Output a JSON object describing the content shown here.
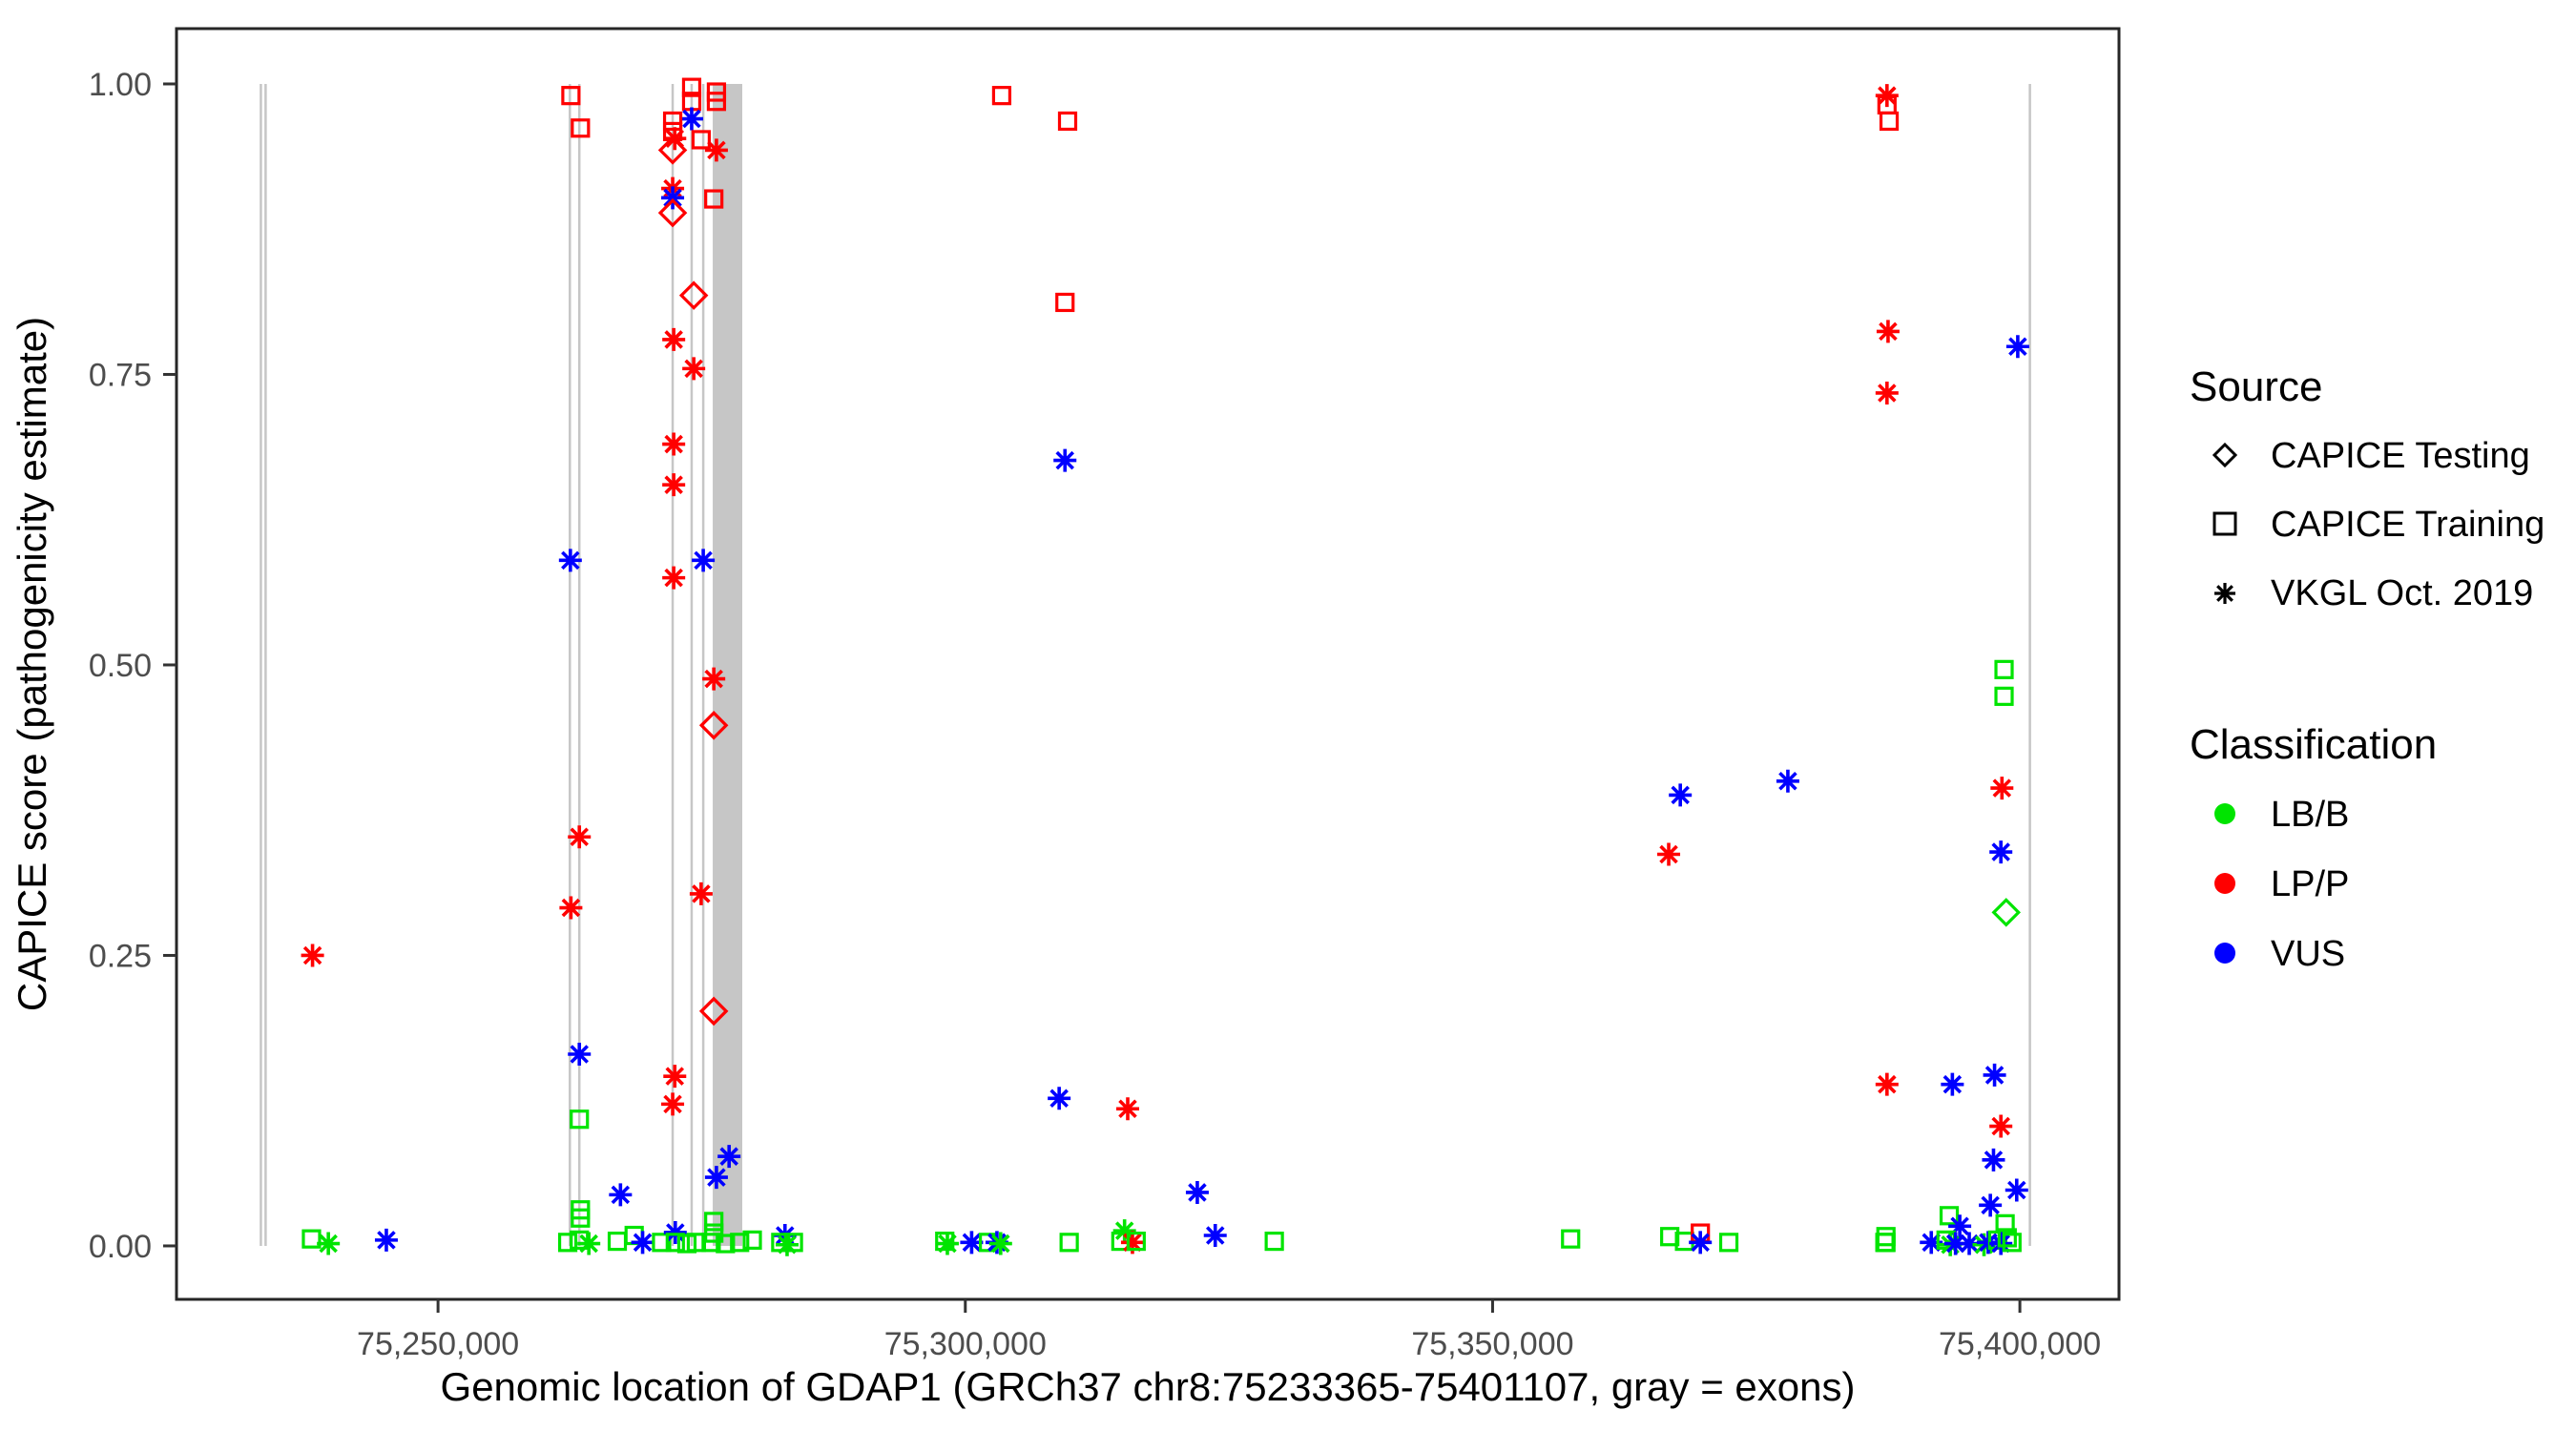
{
  "axes": {
    "x": {
      "label": "Genomic location of GDAP1 (GRCh37 chr8:75233365-75401107, gray = exons)",
      "range": [
        75225200,
        75409400
      ],
      "ticks": [
        {
          "value": 75250000,
          "label": "75,250,000"
        },
        {
          "value": 75300000,
          "label": "75,300,000"
        },
        {
          "value": 75350000,
          "label": "75,350,000"
        },
        {
          "value": 75400000,
          "label": "75,400,000"
        }
      ]
    },
    "y": {
      "label": "CAPICE score (pathogenicity estimate)",
      "range": [
        -0.046,
        1.0476
      ],
      "ticks": [
        {
          "value": 0.0,
          "label": "0.00"
        },
        {
          "value": 0.25,
          "label": "0.25"
        },
        {
          "value": 0.5,
          "label": "0.50"
        },
        {
          "value": 0.75,
          "label": "0.75"
        },
        {
          "value": 1.0,
          "label": "1.00"
        }
      ]
    }
  },
  "legend": {
    "source": {
      "title": "Source",
      "items": [
        {
          "shape": "diamond",
          "label": "CAPICE Testing"
        },
        {
          "shape": "square",
          "label": "CAPICE Training"
        },
        {
          "shape": "asterisk",
          "label": "VKGL Oct. 2019"
        }
      ]
    },
    "classification": {
      "title": "Classification",
      "items": [
        {
          "color": "#00E400",
          "label": "LB/B"
        },
        {
          "color": "#FF0000",
          "label": "LP/P"
        },
        {
          "color": "#0000FF",
          "label": "VUS"
        }
      ]
    }
  },
  "exons": {
    "color": "#C6C6C6",
    "y_span": [
      0,
      1
    ],
    "line_positions": [
      75233200,
      75233650,
      75262500,
      75263400,
      75272250,
      75274050,
      75275150,
      75400950
    ],
    "band": {
      "start": 75276050,
      "end": 75278850
    }
  },
  "chart_data": {
    "type": "scatter",
    "title": "",
    "xlabel": "Genomic location of GDAP1 (GRCh37 chr8:75233365-75401107, gray = exons)",
    "ylabel": "CAPICE score (pathogenicity estimate)",
    "xlim": [
      75225200,
      75409400
    ],
    "ylim": [
      -0.046,
      1.0476
    ],
    "grid": false,
    "legend_position": "right",
    "marker_map": {
      "testing": "diamond",
      "training": "square",
      "vkgl": "asterisk"
    },
    "source_labels": {
      "testing": "CAPICE Testing",
      "training": "CAPICE Training",
      "vkgl": "VKGL Oct. 2019"
    },
    "color_map": {
      "LB/B": "#00E400",
      "LP/P": "#FF0000",
      "VUS": "#0000FF"
    },
    "points": [
      {
        "x": 75238100,
        "y": 0.25,
        "src": "vkgl",
        "cls": "LP/P"
      },
      {
        "x": 75238000,
        "y": 0.006,
        "src": "training",
        "cls": "LB/B"
      },
      {
        "x": 75239600,
        "y": 0.002,
        "src": "vkgl",
        "cls": "LB/B"
      },
      {
        "x": 75245100,
        "y": 0.005,
        "src": "vkgl",
        "cls": "VUS"
      },
      {
        "x": 75262600,
        "y": 0.99,
        "src": "training",
        "cls": "LP/P"
      },
      {
        "x": 75263500,
        "y": 0.962,
        "src": "training",
        "cls": "LP/P"
      },
      {
        "x": 75262550,
        "y": 0.59,
        "src": "vkgl",
        "cls": "VUS"
      },
      {
        "x": 75263400,
        "y": 0.352,
        "src": "vkgl",
        "cls": "LP/P"
      },
      {
        "x": 75262600,
        "y": 0.291,
        "src": "vkgl",
        "cls": "LP/P"
      },
      {
        "x": 75263400,
        "y": 0.165,
        "src": "vkgl",
        "cls": "VUS"
      },
      {
        "x": 75263400,
        "y": 0.109,
        "src": "training",
        "cls": "LB/B"
      },
      {
        "x": 75263500,
        "y": 0.031,
        "src": "training",
        "cls": "LB/B"
      },
      {
        "x": 75263500,
        "y": 0.024,
        "src": "training",
        "cls": "LB/B"
      },
      {
        "x": 75262300,
        "y": 0.003,
        "src": "training",
        "cls": "LB/B"
      },
      {
        "x": 75263400,
        "y": 0.005,
        "src": "training",
        "cls": "LB/B"
      },
      {
        "x": 75264300,
        "y": 0.002,
        "src": "vkgl",
        "cls": "LB/B"
      },
      {
        "x": 75267300,
        "y": 0.044,
        "src": "vkgl",
        "cls": "VUS"
      },
      {
        "x": 75268600,
        "y": 0.009,
        "src": "training",
        "cls": "LB/B"
      },
      {
        "x": 75269400,
        "y": 0.003,
        "src": "vkgl",
        "cls": "VUS"
      },
      {
        "x": 75267000,
        "y": 0.004,
        "src": "training",
        "cls": "LB/B"
      },
      {
        "x": 75271200,
        "y": 0.003,
        "src": "training",
        "cls": "LB/B"
      },
      {
        "x": 75274050,
        "y": 0.997,
        "src": "training",
        "cls": "LP/P"
      },
      {
        "x": 75274050,
        "y": 0.985,
        "src": "training",
        "cls": "LP/P"
      },
      {
        "x": 75276400,
        "y": 0.993,
        "src": "training",
        "cls": "LP/P"
      },
      {
        "x": 75276400,
        "y": 0.985,
        "src": "training",
        "cls": "LP/P"
      },
      {
        "x": 75274050,
        "y": 0.97,
        "src": "vkgl",
        "cls": "VUS"
      },
      {
        "x": 75272250,
        "y": 0.968,
        "src": "training",
        "cls": "LP/P"
      },
      {
        "x": 75272250,
        "y": 0.959,
        "src": "training",
        "cls": "LP/P"
      },
      {
        "x": 75272450,
        "y": 0.953,
        "src": "vkgl",
        "cls": "LP/P"
      },
      {
        "x": 75272250,
        "y": 0.943,
        "src": "testing",
        "cls": "LP/P"
      },
      {
        "x": 75274950,
        "y": 0.952,
        "src": "training",
        "cls": "LP/P"
      },
      {
        "x": 75276400,
        "y": 0.943,
        "src": "vkgl",
        "cls": "LP/P"
      },
      {
        "x": 75272250,
        "y": 0.91,
        "src": "vkgl",
        "cls": "LP/P"
      },
      {
        "x": 75272250,
        "y": 0.902,
        "src": "vkgl",
        "cls": "VUS"
      },
      {
        "x": 75272250,
        "y": 0.889,
        "src": "testing",
        "cls": "LP/P"
      },
      {
        "x": 75276150,
        "y": 0.901,
        "src": "training",
        "cls": "LP/P"
      },
      {
        "x": 75274250,
        "y": 0.818,
        "src": "testing",
        "cls": "LP/P"
      },
      {
        "x": 75272350,
        "y": 0.78,
        "src": "vkgl",
        "cls": "LP/P"
      },
      {
        "x": 75274250,
        "y": 0.755,
        "src": "vkgl",
        "cls": "LP/P"
      },
      {
        "x": 75272350,
        "y": 0.69,
        "src": "vkgl",
        "cls": "LP/P"
      },
      {
        "x": 75272350,
        "y": 0.655,
        "src": "vkgl",
        "cls": "LP/P"
      },
      {
        "x": 75275150,
        "y": 0.59,
        "src": "vkgl",
        "cls": "VUS"
      },
      {
        "x": 75272350,
        "y": 0.575,
        "src": "vkgl",
        "cls": "LP/P"
      },
      {
        "x": 75276150,
        "y": 0.488,
        "src": "vkgl",
        "cls": "LP/P"
      },
      {
        "x": 75276150,
        "y": 0.448,
        "src": "testing",
        "cls": "LP/P"
      },
      {
        "x": 75274950,
        "y": 0.303,
        "src": "vkgl",
        "cls": "LP/P"
      },
      {
        "x": 75276150,
        "y": 0.202,
        "src": "testing",
        "cls": "LP/P"
      },
      {
        "x": 75272450,
        "y": 0.146,
        "src": "vkgl",
        "cls": "LP/P"
      },
      {
        "x": 75272250,
        "y": 0.122,
        "src": "vkgl",
        "cls": "LP/P"
      },
      {
        "x": 75277600,
        "y": 0.077,
        "src": "vkgl",
        "cls": "VUS"
      },
      {
        "x": 75276400,
        "y": 0.059,
        "src": "vkgl",
        "cls": "VUS"
      },
      {
        "x": 75272500,
        "y": 0.0115,
        "src": "vkgl",
        "cls": "VUS"
      },
      {
        "x": 75272500,
        "y": 0.003,
        "src": "training",
        "cls": "LB/B"
      },
      {
        "x": 75273600,
        "y": 0.002,
        "src": "training",
        "cls": "LB/B"
      },
      {
        "x": 75274500,
        "y": 0.003,
        "src": "training",
        "cls": "LB/B"
      },
      {
        "x": 75276150,
        "y": 0.021,
        "src": "training",
        "cls": "LB/B"
      },
      {
        "x": 75276150,
        "y": 0.011,
        "src": "training",
        "cls": "LB/B"
      },
      {
        "x": 75275900,
        "y": 0.003,
        "src": "training",
        "cls": "LB/B"
      },
      {
        "x": 75277250,
        "y": 0.002,
        "src": "training",
        "cls": "LB/B"
      },
      {
        "x": 75278600,
        "y": 0.003,
        "src": "training",
        "cls": "LB/B"
      },
      {
        "x": 75279800,
        "y": 0.005,
        "src": "training",
        "cls": "LB/B"
      },
      {
        "x": 75282900,
        "y": 0.009,
        "src": "vkgl",
        "cls": "VUS"
      },
      {
        "x": 75282500,
        "y": 0.003,
        "src": "training",
        "cls": "LB/B"
      },
      {
        "x": 75283700,
        "y": 0.003,
        "src": "training",
        "cls": "LB/B"
      },
      {
        "x": 75283100,
        "y": 0.001,
        "src": "vkgl",
        "cls": "LB/B"
      },
      {
        "x": 75303450,
        "y": 0.99,
        "src": "training",
        "cls": "LP/P"
      },
      {
        "x": 75309700,
        "y": 0.968,
        "src": "training",
        "cls": "LP/P"
      },
      {
        "x": 75309450,
        "y": 0.812,
        "src": "training",
        "cls": "LP/P"
      },
      {
        "x": 75309450,
        "y": 0.676,
        "src": "vkgl",
        "cls": "VUS"
      },
      {
        "x": 75308900,
        "y": 0.127,
        "src": "vkgl",
        "cls": "VUS"
      },
      {
        "x": 75315400,
        "y": 0.118,
        "src": "vkgl",
        "cls": "LP/P"
      },
      {
        "x": 75322000,
        "y": 0.046,
        "src": "vkgl",
        "cls": "VUS"
      },
      {
        "x": 75323700,
        "y": 0.009,
        "src": "vkgl",
        "cls": "VUS"
      },
      {
        "x": 75298050,
        "y": 0.004,
        "src": "training",
        "cls": "LB/B"
      },
      {
        "x": 75298300,
        "y": 0.002,
        "src": "vkgl",
        "cls": "LB/B"
      },
      {
        "x": 75300600,
        "y": 0.003,
        "src": "vkgl",
        "cls": "VUS"
      },
      {
        "x": 75302200,
        "y": 0.003,
        "src": "training",
        "cls": "LB/B"
      },
      {
        "x": 75303000,
        "y": 0.003,
        "src": "vkgl",
        "cls": "VUS"
      },
      {
        "x": 75303350,
        "y": 0.002,
        "src": "vkgl",
        "cls": "LB/B"
      },
      {
        "x": 75309850,
        "y": 0.003,
        "src": "training",
        "cls": "LB/B"
      },
      {
        "x": 75315100,
        "y": 0.013,
        "src": "vkgl",
        "cls": "LB/B"
      },
      {
        "x": 75314750,
        "y": 0.004,
        "src": "training",
        "cls": "LB/B"
      },
      {
        "x": 75315850,
        "y": 0.003,
        "src": "vkgl",
        "cls": "LP/P"
      },
      {
        "x": 75316200,
        "y": 0.004,
        "src": "training",
        "cls": "LB/B"
      },
      {
        "x": 75329300,
        "y": 0.004,
        "src": "training",
        "cls": "LB/B"
      },
      {
        "x": 75357400,
        "y": 0.006,
        "src": "training",
        "cls": "LB/B"
      },
      {
        "x": 75367800,
        "y": 0.388,
        "src": "vkgl",
        "cls": "VUS"
      },
      {
        "x": 75378000,
        "y": 0.4,
        "src": "vkgl",
        "cls": "VUS"
      },
      {
        "x": 75366700,
        "y": 0.337,
        "src": "vkgl",
        "cls": "LP/P"
      },
      {
        "x": 75366800,
        "y": 0.008,
        "src": "training",
        "cls": "LB/B"
      },
      {
        "x": 75368200,
        "y": 0.004,
        "src": "training",
        "cls": "LB/B"
      },
      {
        "x": 75369700,
        "y": 0.011,
        "src": "training",
        "cls": "LP/P"
      },
      {
        "x": 75369700,
        "y": 0.003,
        "src": "vkgl",
        "cls": "VUS"
      },
      {
        "x": 75372400,
        "y": 0.003,
        "src": "training",
        "cls": "LB/B"
      },
      {
        "x": 75387300,
        "y": 0.008,
        "src": "training",
        "cls": "LB/B"
      },
      {
        "x": 75387300,
        "y": 0.003,
        "src": "training",
        "cls": "LB/B"
      },
      {
        "x": 75387400,
        "y": 0.99,
        "src": "vkgl",
        "cls": "LP/P"
      },
      {
        "x": 75387400,
        "y": 0.982,
        "src": "training",
        "cls": "LP/P"
      },
      {
        "x": 75387600,
        "y": 0.968,
        "src": "training",
        "cls": "LP/P"
      },
      {
        "x": 75387500,
        "y": 0.787,
        "src": "vkgl",
        "cls": "LP/P"
      },
      {
        "x": 75387400,
        "y": 0.734,
        "src": "vkgl",
        "cls": "LP/P"
      },
      {
        "x": 75399800,
        "y": 0.774,
        "src": "vkgl",
        "cls": "VUS"
      },
      {
        "x": 75398500,
        "y": 0.496,
        "src": "training",
        "cls": "LB/B"
      },
      {
        "x": 75398500,
        "y": 0.473,
        "src": "training",
        "cls": "LB/B"
      },
      {
        "x": 75398300,
        "y": 0.394,
        "src": "vkgl",
        "cls": "LP/P"
      },
      {
        "x": 75398200,
        "y": 0.339,
        "src": "vkgl",
        "cls": "VUS"
      },
      {
        "x": 75398700,
        "y": 0.287,
        "src": "testing",
        "cls": "LB/B"
      },
      {
        "x": 75387400,
        "y": 0.139,
        "src": "vkgl",
        "cls": "LP/P"
      },
      {
        "x": 75393600,
        "y": 0.139,
        "src": "vkgl",
        "cls": "VUS"
      },
      {
        "x": 75397600,
        "y": 0.147,
        "src": "vkgl",
        "cls": "VUS"
      },
      {
        "x": 75398200,
        "y": 0.103,
        "src": "vkgl",
        "cls": "LP/P"
      },
      {
        "x": 75397500,
        "y": 0.074,
        "src": "vkgl",
        "cls": "VUS"
      },
      {
        "x": 75399700,
        "y": 0.048,
        "src": "vkgl",
        "cls": "VUS"
      },
      {
        "x": 75397200,
        "y": 0.035,
        "src": "vkgl",
        "cls": "VUS"
      },
      {
        "x": 75393300,
        "y": 0.026,
        "src": "training",
        "cls": "LB/B"
      },
      {
        "x": 75394300,
        "y": 0.017,
        "src": "vkgl",
        "cls": "VUS"
      },
      {
        "x": 75398600,
        "y": 0.019,
        "src": "training",
        "cls": "LB/B"
      },
      {
        "x": 75387200,
        "y": 0.003,
        "src": "training",
        "cls": "LB/B"
      },
      {
        "x": 75391600,
        "y": 0.003,
        "src": "vkgl",
        "cls": "VUS"
      },
      {
        "x": 75393000,
        "y": 0.005,
        "src": "training",
        "cls": "LB/B"
      },
      {
        "x": 75393400,
        "y": 0.001,
        "src": "vkgl",
        "cls": "LB/B"
      },
      {
        "x": 75393900,
        "y": 0.002,
        "src": "vkgl",
        "cls": "VUS"
      },
      {
        "x": 75395200,
        "y": 0.002,
        "src": "vkgl",
        "cls": "VUS"
      },
      {
        "x": 75396600,
        "y": 0.001,
        "src": "vkgl",
        "cls": "LB/B"
      },
      {
        "x": 75397000,
        "y": 0.003,
        "src": "vkgl",
        "cls": "VUS"
      },
      {
        "x": 75397900,
        "y": 0.005,
        "src": "training",
        "cls": "LB/B"
      },
      {
        "x": 75398200,
        "y": 0.002,
        "src": "vkgl",
        "cls": "VUS"
      },
      {
        "x": 75398800,
        "y": 0.007,
        "src": "training",
        "cls": "LB/B"
      },
      {
        "x": 75399250,
        "y": 0.003,
        "src": "training",
        "cls": "LB/B"
      }
    ]
  }
}
